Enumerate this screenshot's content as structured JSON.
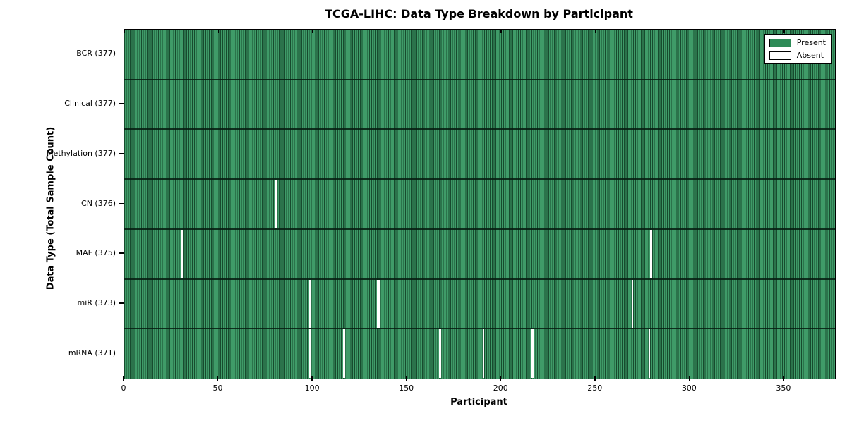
{
  "chart_data": {
    "type": "heatmap",
    "title": "TCGA-LIHC: Data Type Breakdown by Participant",
    "xlabel": "Participant",
    "ylabel": "Data Type (Total Sample Count)",
    "x_range": [
      0,
      377
    ],
    "x_ticks": [
      0,
      50,
      100,
      150,
      200,
      250,
      300,
      350
    ],
    "n_participants": 377,
    "cell_states": [
      "Present",
      "Absent"
    ],
    "rows": [
      {
        "label": "BCR",
        "total": 377,
        "label_display": "BCR (377)",
        "absent": []
      },
      {
        "label": "Clinical",
        "total": 377,
        "label_display": "Clinical (377)",
        "absent": []
      },
      {
        "label": "Methylation",
        "total": 377,
        "label_display": "Methylation (377)",
        "absent": []
      },
      {
        "label": "CN",
        "total": 376,
        "label_display": "CN (376)",
        "absent": [
          80
        ]
      },
      {
        "label": "MAF",
        "total": 375,
        "label_display": "MAF (375)",
        "absent": [
          30,
          279
        ]
      },
      {
        "label": "miR",
        "total": 373,
        "label_display": "miR (373)",
        "absent": [
          98,
          134,
          135,
          269
        ]
      },
      {
        "label": "mRNA",
        "total": 371,
        "label_display": "mRNA (371)",
        "absent": [
          98,
          116,
          167,
          190,
          216,
          278
        ]
      }
    ],
    "legend": [
      {
        "label": "Present",
        "color": "#2e8b57"
      },
      {
        "label": "Absent",
        "color": "#ffffff"
      }
    ],
    "colors": {
      "present": "#2e8b57",
      "present_stripe_light": "#3f9b68",
      "present_stripe_dark": "#174b2e",
      "absent": "#ffffff",
      "row_boundary": "rgba(6,28,16,0.85)",
      "spine": "#000000"
    },
    "legend_position": "upper right",
    "grid": false
  }
}
